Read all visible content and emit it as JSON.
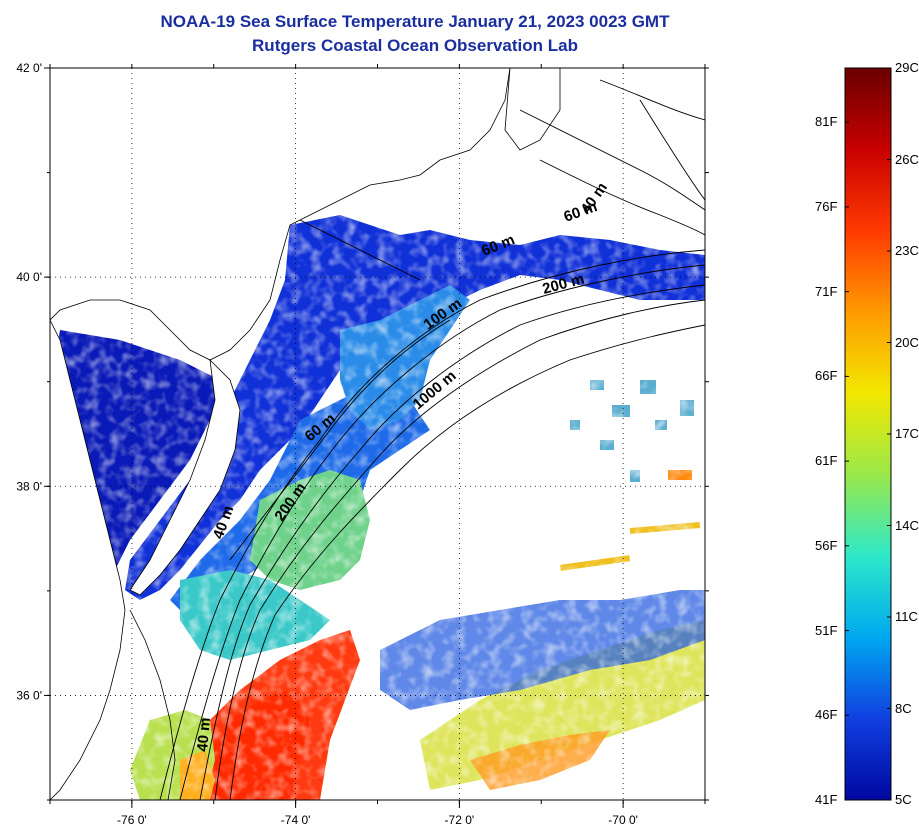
{
  "title_line1": "NOAA-19 Sea Surface Temperature January 21, 2023 0023 GMT",
  "title_line2": "Rutgers Coastal Ocean Observation Lab",
  "lat_ticks": [
    {
      "value": 42,
      "label": "42 0'"
    },
    {
      "value": 40,
      "label": "40 0'"
    },
    {
      "value": 38,
      "label": "38 0'"
    },
    {
      "value": 36,
      "label": "36 0'"
    }
  ],
  "lon_ticks": [
    {
      "value": -76,
      "label": "-76 0'"
    },
    {
      "value": -74,
      "label": "-74 0'"
    },
    {
      "value": -72,
      "label": "-72 0'"
    },
    {
      "value": -70,
      "label": "-70 0'"
    }
  ],
  "contour_labels": [
    "40 m",
    "60 m",
    "60 m",
    "200 m",
    "100 m",
    "1000 m",
    "60 m",
    "200 m",
    "40 m",
    "40 m"
  ],
  "colorbar": {
    "fahrenheit": [
      "81F",
      "76F",
      "71F",
      "66F",
      "61F",
      "56F",
      "51F",
      "46F",
      "41F"
    ],
    "celsius": [
      "29C",
      "26C",
      "23C",
      "20C",
      "17C",
      "14C",
      "11C",
      "8C",
      "5C"
    ],
    "colors": [
      "#6a0000",
      "#c80000",
      "#ff3a00",
      "#ff9a00",
      "#f2e800",
      "#9ae84a",
      "#2ee8c8",
      "#00a8f0",
      "#1040e0",
      "#0008a0"
    ]
  }
}
